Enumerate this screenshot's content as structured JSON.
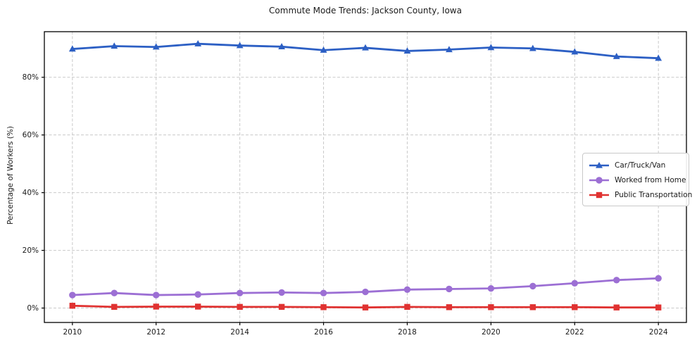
{
  "window": {
    "title": "Commute Mode Trends: Jackson County, Iowa"
  },
  "chart_data": {
    "type": "line",
    "title": "Commute Mode Trends: Jackson County, Iowa",
    "xlabel": "",
    "ylabel": "Percentage of Workers (%)",
    "x": [
      2010,
      2011,
      2012,
      2013,
      2014,
      2015,
      2016,
      2017,
      2018,
      2019,
      2020,
      2021,
      2022,
      2023,
      2024
    ],
    "series": [
      {
        "name": "Car/Truck/Van",
        "marker": "triangle",
        "color": "#2c5fc4",
        "values": [
          89.8,
          90.8,
          90.5,
          91.6,
          91.0,
          90.6,
          89.4,
          90.2,
          89.1,
          89.6,
          90.3,
          90.0,
          88.8,
          87.2,
          86.6
        ]
      },
      {
        "name": "Worked from Home",
        "marker": "circle",
        "color": "#9c6fd4",
        "values": [
          4.5,
          5.2,
          4.5,
          4.7,
          5.2,
          5.4,
          5.2,
          5.6,
          6.4,
          6.6,
          6.8,
          7.6,
          8.6,
          9.7,
          10.3
        ]
      },
      {
        "name": "Public Transportation",
        "marker": "square",
        "color": "#e03231",
        "values": [
          0.8,
          0.4,
          0.5,
          0.5,
          0.4,
          0.4,
          0.3,
          0.2,
          0.4,
          0.3,
          0.3,
          0.3,
          0.3,
          0.2,
          0.2
        ]
      }
    ],
    "xticks": [
      2010,
      2012,
      2014,
      2016,
      2018,
      2020,
      2022,
      2024
    ],
    "yticks": [
      0,
      20,
      40,
      60,
      80
    ],
    "ytick_suffix": "%",
    "xlim": [
      2009.33,
      2024.67
    ],
    "ylim": [
      -5,
      95.8
    ],
    "grid": true,
    "legend_position": "center-right",
    "colors": {
      "grid": "#c9c9c9",
      "spine": "#000000",
      "text": "#1a1a1a",
      "background": "#ffffff"
    }
  }
}
